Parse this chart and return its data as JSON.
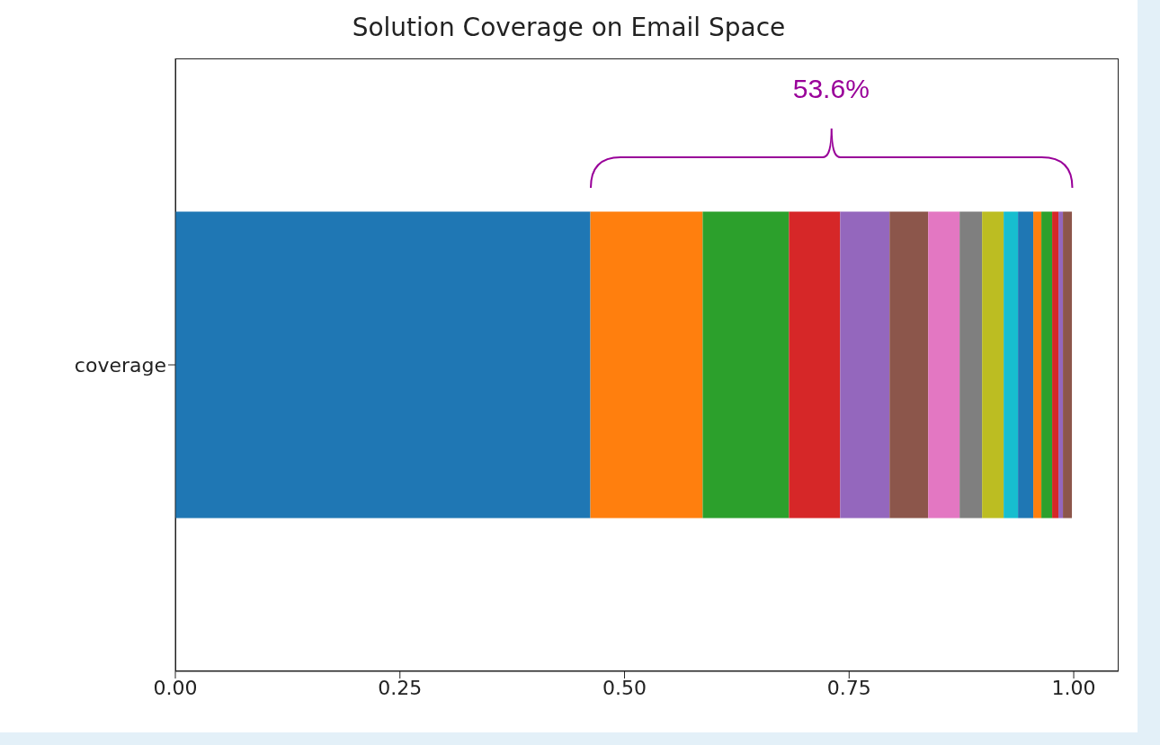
{
  "chart_data": {
    "type": "bar",
    "orientation": "horizontal",
    "stacked": true,
    "title": "Solution Coverage on Email Space",
    "categories": [
      "coverage"
    ],
    "series": [
      {
        "color": "#1f77b4",
        "values": [
          0.462
        ]
      },
      {
        "color": "#ff7f0e",
        "values": [
          0.125
        ]
      },
      {
        "color": "#2ca02c",
        "values": [
          0.096
        ]
      },
      {
        "color": "#d62728",
        "values": [
          0.057
        ]
      },
      {
        "color": "#9467bd",
        "values": [
          0.055
        ]
      },
      {
        "color": "#8c564b",
        "values": [
          0.043
        ]
      },
      {
        "color": "#e377c2",
        "values": [
          0.035
        ]
      },
      {
        "color": "#7f7f7f",
        "values": [
          0.025
        ]
      },
      {
        "color": "#bcbd22",
        "values": [
          0.024
        ]
      },
      {
        "color": "#17becf",
        "values": [
          0.016
        ]
      },
      {
        "color": "#1f77b4",
        "values": [
          0.017
        ]
      },
      {
        "color": "#ff7f0e",
        "values": [
          0.009
        ]
      },
      {
        "color": "#2ca02c",
        "values": [
          0.012
        ]
      },
      {
        "color": "#d62728",
        "values": [
          0.007
        ]
      },
      {
        "color": "#9467bd",
        "values": [
          0.005
        ]
      },
      {
        "color": "#8c564b",
        "values": [
          0.01
        ]
      }
    ],
    "xlim": [
      0,
      1.05
    ],
    "xticks": [
      {
        "value": 0,
        "label": "0.00"
      },
      {
        "value": 0.25,
        "label": "0.25"
      },
      {
        "value": 0.5,
        "label": "0.50"
      },
      {
        "value": 0.75,
        "label": "0.75"
      },
      {
        "value": 1,
        "label": "1.00"
      }
    ],
    "annotations": [
      "53.6%"
    ]
  }
}
